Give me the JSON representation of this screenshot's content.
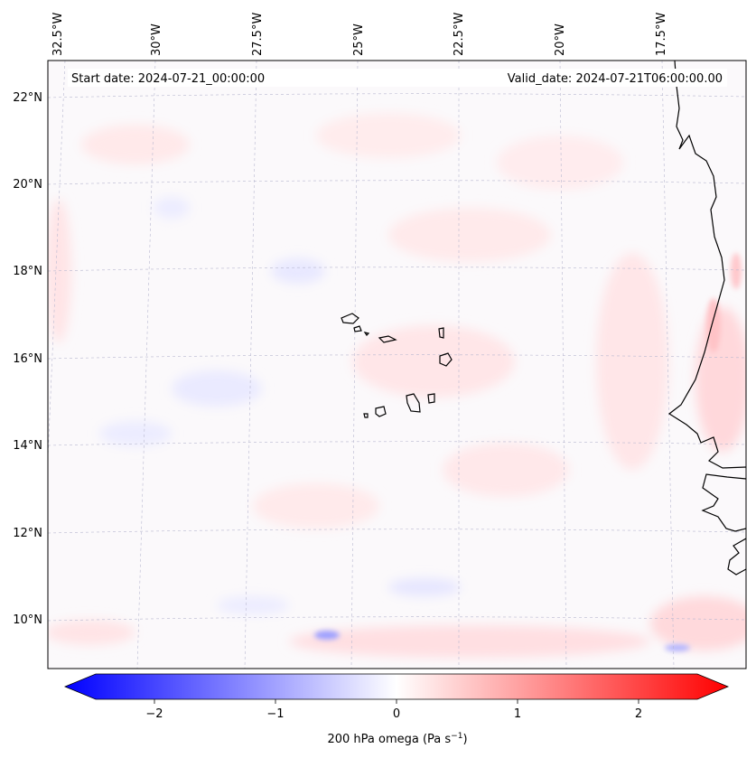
{
  "header": {
    "start_date": "Start date: 2024-07-21_00:00:00",
    "valid_date": "Valid_date: 2024-07-21T06:00:00.00"
  },
  "axes": {
    "lon_labels": [
      "32.5°W",
      "30°W",
      "27.5°W",
      "25°W",
      "22.5°W",
      "20°W",
      "17.5°W"
    ],
    "lat_labels": [
      "22°N",
      "20°N",
      "18°N",
      "16°N",
      "14°N",
      "12°N",
      "10°N"
    ]
  },
  "colorbar": {
    "label": "200 hPa omega (Pa s",
    "label_sup": "−1",
    "label_end": ")",
    "ticks": [
      "−2",
      "−1",
      "0",
      "1",
      "2"
    ],
    "vmin": -2.6,
    "vmax": 2.6,
    "low_color": "#0000ff",
    "mid_color": "#ffffff",
    "high_color": "#ff0000"
  },
  "colors": {
    "positive_tint": "#ffe6e6",
    "negative_tint": "#e8e8ff",
    "coastline": "#000000",
    "gridline": "#b0b0c8"
  }
}
